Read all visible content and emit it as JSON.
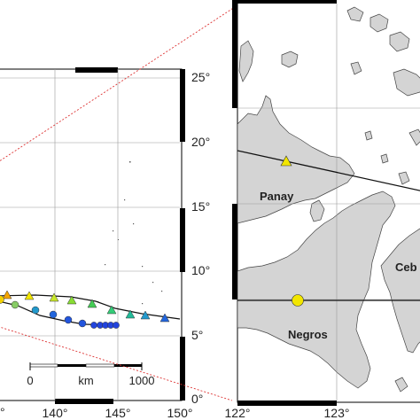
{
  "left_map": {
    "lat_ticks": [
      "25°",
      "20°",
      "15°",
      "10°",
      "5°",
      "0°"
    ],
    "lon_ticks": [
      "140°",
      "145°",
      "150°"
    ],
    "partial_lon_label": "°",
    "scale_bar": {
      "zero": "0",
      "unit": "km",
      "max": "1000"
    }
  },
  "right_map": {
    "lon_ticks": [
      "122°",
      "123°"
    ],
    "places": [
      "Panay",
      "Negros",
      "Ceb"
    ]
  },
  "colors": {
    "land": "#d4d4d4",
    "track_west": "#cc2222",
    "track_blue": "#2255dd",
    "marker_yellow": "#f2e600",
    "marker_green": "#33cc55",
    "inset_line": "#dd3333"
  }
}
